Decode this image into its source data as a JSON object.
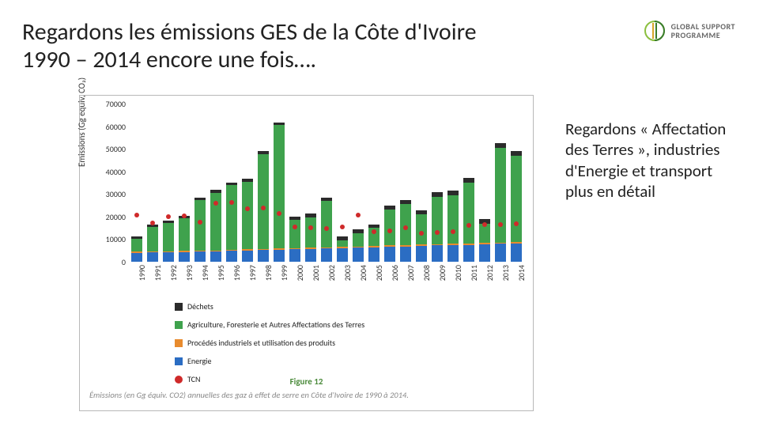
{
  "title": "Regardons les émissions GES de la Côte d'Ivoire 1990 – 2014 encore une fois….",
  "logo": {
    "line1": "GLOBAL SUPPORT",
    "line2": "PROGRAMME"
  },
  "side_text": "Regardons « Affectation des Terres », industries d'Energie et transport plus en détail",
  "chart": {
    "type": "stacked-bar-with-scatter",
    "ylabel": "Emissions (Gg equiv, CO₂)",
    "ylim": [
      0,
      70000
    ],
    "ytick_step": 10000,
    "yticks": [
      "0",
      "10000",
      "20000",
      "30000",
      "40000",
      "50000",
      "60000",
      "70000"
    ],
    "years": [
      "1990",
      "1991",
      "1992",
      "1993",
      "1994",
      "1995",
      "1996",
      "1997",
      "1998",
      "1999",
      "2000",
      "2001",
      "2002",
      "2003",
      "2004",
      "2005",
      "2006",
      "2007",
      "2008",
      "2009",
      "2010",
      "2011",
      "2012",
      "2013",
      "2014"
    ],
    "series": [
      {
        "key": "energie",
        "label": "Energie",
        "color": "#2b6dc3"
      },
      {
        "key": "procedes",
        "label": "Procédés industriels et utilisation des produits",
        "color": "#e88b2e"
      },
      {
        "key": "agri",
        "label": "Agriculture, Foresterie et Autres Affectations des Terres",
        "color": "#3fa24d"
      },
      {
        "key": "dechets",
        "label": "Déchets",
        "color": "#2b2b2b"
      }
    ],
    "tcn": {
      "label": "TCN",
      "color": "#cf2a2a"
    },
    "data": [
      {
        "year": "1990",
        "energie": 4000,
        "procedes": 400,
        "agri": 5800,
        "dechets": 1000,
        "tcn": 20500
      },
      {
        "year": "1991",
        "energie": 4100,
        "procedes": 420,
        "agri": 11000,
        "dechets": 1000,
        "tcn": 17000
      },
      {
        "year": "1992",
        "energie": 4200,
        "procedes": 430,
        "agri": 12500,
        "dechets": 1050,
        "tcn": 20000
      },
      {
        "year": "1993",
        "energie": 4300,
        "procedes": 440,
        "agri": 14500,
        "dechets": 1050,
        "tcn": 20200
      },
      {
        "year": "1994",
        "energie": 4400,
        "procedes": 450,
        "agri": 22500,
        "dechets": 1100,
        "tcn": 17500
      },
      {
        "year": "1995",
        "energie": 4600,
        "procedes": 470,
        "agri": 25500,
        "dechets": 1150,
        "tcn": 26000
      },
      {
        "year": "1996",
        "energie": 4800,
        "procedes": 480,
        "agri": 28500,
        "dechets": 1200,
        "tcn": 26200
      },
      {
        "year": "1997",
        "energie": 5000,
        "procedes": 500,
        "agri": 30000,
        "dechets": 1250,
        "tcn": 23500
      },
      {
        "year": "1998",
        "energie": 5200,
        "procedes": 510,
        "agri": 42000,
        "dechets": 1300,
        "tcn": 23800
      },
      {
        "year": "1999",
        "energie": 5400,
        "procedes": 520,
        "agri": 54500,
        "dechets": 1350,
        "tcn": 21500
      },
      {
        "year": "2000",
        "energie": 5500,
        "procedes": 530,
        "agri": 12500,
        "dechets": 1400,
        "tcn": 15500
      },
      {
        "year": "2001",
        "energie": 5700,
        "procedes": 540,
        "agri": 13500,
        "dechets": 1450,
        "tcn": 15200
      },
      {
        "year": "2002",
        "energie": 5900,
        "procedes": 550,
        "agri": 20500,
        "dechets": 1500,
        "tcn": 14800
      },
      {
        "year": "2003",
        "energie": 6000,
        "procedes": 560,
        "agri": 3000,
        "dechets": 1550,
        "tcn": 15300
      },
      {
        "year": "2004",
        "energie": 6200,
        "procedes": 570,
        "agri": 6000,
        "dechets": 1600,
        "tcn": 20800
      },
      {
        "year": "2005",
        "energie": 6400,
        "procedes": 580,
        "agri": 8000,
        "dechets": 1650,
        "tcn": 13200
      },
      {
        "year": "2006",
        "energie": 6600,
        "procedes": 590,
        "agri": 16000,
        "dechets": 1700,
        "tcn": 13800
      },
      {
        "year": "2007",
        "energie": 6800,
        "procedes": 600,
        "agri": 18000,
        "dechets": 1750,
        "tcn": 15200
      },
      {
        "year": "2008",
        "energie": 7000,
        "procedes": 610,
        "agri": 13500,
        "dechets": 1800,
        "tcn": 12500
      },
      {
        "year": "2009",
        "energie": 7200,
        "procedes": 620,
        "agri": 21000,
        "dechets": 1850,
        "tcn": 13000
      },
      {
        "year": "2010",
        "energie": 7400,
        "procedes": 640,
        "agri": 21500,
        "dechets": 1900,
        "tcn": 13300
      },
      {
        "year": "2011",
        "energie": 7500,
        "procedes": 650,
        "agri": 27000,
        "dechets": 1950,
        "tcn": 16000
      },
      {
        "year": "2012",
        "energie": 7700,
        "procedes": 660,
        "agri": 8500,
        "dechets": 2000,
        "tcn": 16300
      },
      {
        "year": "2013",
        "energie": 7900,
        "procedes": 670,
        "agri": 42000,
        "dechets": 2050,
        "tcn": 16500
      },
      {
        "year": "2014",
        "energie": 8100,
        "procedes": 680,
        "agri": 38000,
        "dechets": 2100,
        "tcn": 16800
      }
    ],
    "legend_order": [
      "dechets",
      "agri",
      "procedes",
      "energie",
      "tcn"
    ],
    "figure_label": "Figure 12",
    "figure_label_color": "#4a8a3a",
    "caption": "Émissions (en Gg équiv. CO2) annuelles des gaz à effet de serre en Côte d'Ivoire de 1990 à 2014.",
    "background_color": "#ffffff",
    "axis_text_color": "#333333"
  }
}
